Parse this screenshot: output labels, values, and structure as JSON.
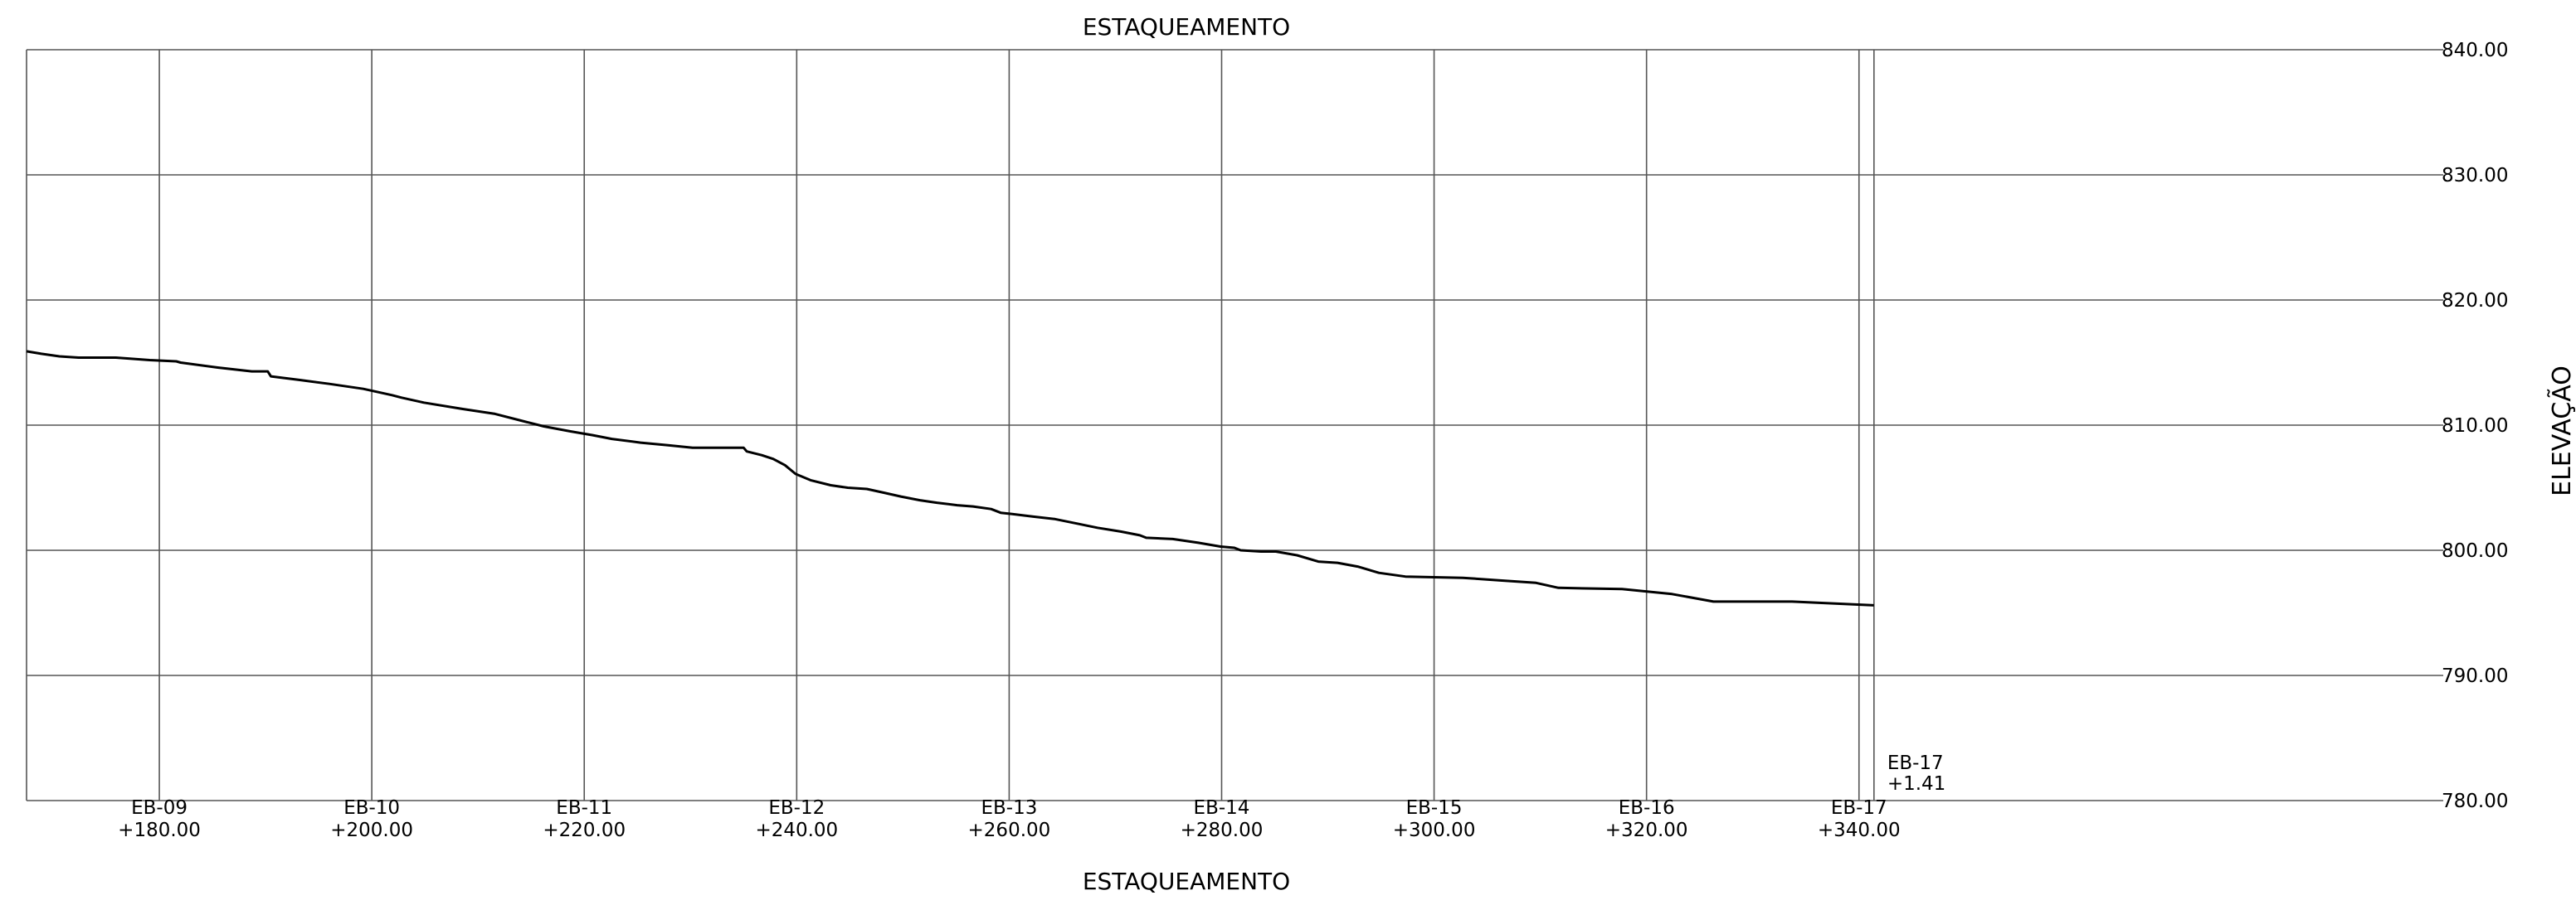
{
  "chart_data": {
    "type": "line",
    "title": "ESTAQUEAMENTO",
    "xlabel": "ESTAQUEAMENTO",
    "ylabel": "ELEVAÇÃO",
    "xlim": [
      167.5,
      395
    ],
    "ylim": [
      780,
      840
    ],
    "y_ticks": [
      {
        "value": 840,
        "label": "840.00"
      },
      {
        "value": 830,
        "label": "830.00"
      },
      {
        "value": 820,
        "label": "820.00"
      },
      {
        "value": 810,
        "label": "810.00"
      },
      {
        "value": 800,
        "label": "800.00"
      },
      {
        "value": 790,
        "label": "790.00"
      },
      {
        "value": 780,
        "label": "780.00"
      }
    ],
    "x_ticks": [
      {
        "value": 180,
        "station": "EB-09",
        "offset": "+180.00"
      },
      {
        "value": 200,
        "station": "EB-10",
        "offset": "+200.00"
      },
      {
        "value": 220,
        "station": "EB-11",
        "offset": "+220.00"
      },
      {
        "value": 240,
        "station": "EB-12",
        "offset": "+240.00"
      },
      {
        "value": 260,
        "station": "EB-13",
        "offset": "+260.00"
      },
      {
        "value": 280,
        "station": "EB-14",
        "offset": "+280.00"
      },
      {
        "value": 300,
        "station": "EB-15",
        "offset": "+300.00"
      },
      {
        "value": 320,
        "station": "EB-16",
        "offset": "+320.00"
      },
      {
        "value": 340,
        "station": "EB-17",
        "offset": "+340.00"
      }
    ],
    "end_station": {
      "value": 341.41,
      "station": "EB-17",
      "offset": "+1.41"
    },
    "grid": true,
    "series": [
      {
        "x": [
          167.5,
          168.9,
          170.6,
          172.4,
          175.9,
          179.1,
          181.6,
          182.0,
          185.5,
          188.7,
          190.2,
          190.5,
          193.3,
          196.0,
          199.2,
          201.9,
          202.8,
          204.9,
          208.5,
          211.6,
          213.9,
          216.2,
          218.7,
          220.8,
          222.6,
          225.3,
          227.9,
          230.2,
          232.5,
          235.0,
          235.3,
          236.7,
          237.8,
          238.9,
          239.9,
          241.3,
          243.2,
          244.8,
          246.6,
          248.2,
          249.8,
          251.6,
          253.2,
          255.1,
          256.6,
          258.3,
          259.2,
          260.3,
          262.2,
          264.3,
          266.6,
          268.3,
          270.5,
          272.3,
          272.9,
          275.4,
          277.8,
          279.9,
          281.2,
          281.8,
          283.7,
          285.1,
          287.1,
          289.1,
          290.9,
          292.8,
          294.8,
          297.3,
          302.7,
          306.1,
          309.6,
          311.7,
          317.7,
          322.4,
          326.3,
          333.7,
          341.4
        ],
        "y": [
          815.9,
          815.7,
          815.5,
          815.4,
          815.4,
          815.2,
          815.1,
          815.0,
          814.6,
          814.3,
          814.3,
          813.9,
          813.6,
          813.3,
          812.9,
          812.4,
          812.2,
          811.8,
          811.3,
          810.9,
          810.4,
          809.9,
          809.5,
          809.2,
          808.9,
          808.6,
          808.4,
          808.2,
          808.2,
          808.2,
          807.9,
          807.6,
          807.3,
          806.8,
          806.1,
          805.6,
          805.2,
          805.0,
          804.9,
          804.6,
          804.3,
          804.0,
          803.8,
          803.6,
          803.5,
          803.3,
          803.0,
          802.9,
          802.7,
          802.5,
          802.1,
          801.8,
          801.5,
          801.2,
          801.0,
          800.9,
          800.6,
          800.3,
          800.2,
          800.0,
          799.9,
          799.9,
          799.6,
          799.1,
          799.0,
          798.7,
          798.2,
          797.9,
          797.8,
          797.6,
          797.4,
          797.0,
          796.9,
          796.5,
          795.9,
          795.9,
          795.6
        ]
      }
    ]
  }
}
